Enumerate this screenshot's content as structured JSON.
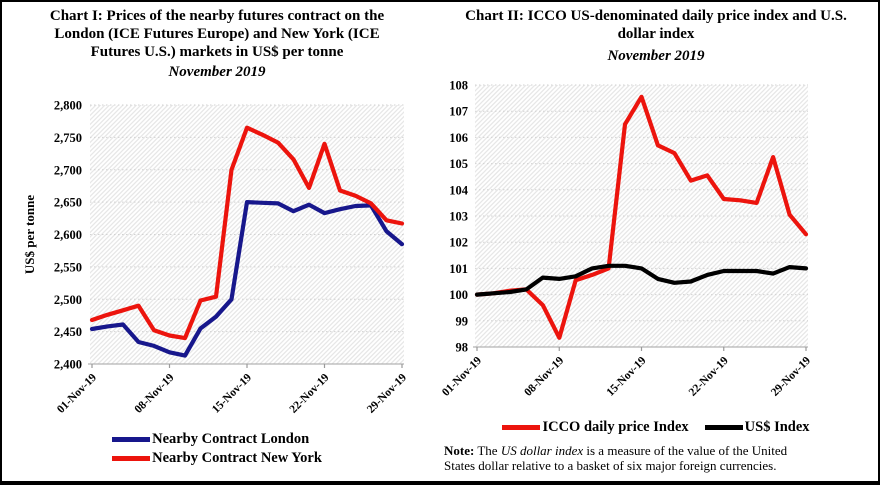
{
  "page": {
    "background": "#ffffff",
    "border_color": "#000000"
  },
  "chart_data": [
    {
      "type": "line",
      "title": "Chart I: Prices of the nearby futures contract on the London (ICE Futures Europe) and New York (ICE Futures U.S.) markets in US$ per tonne",
      "title_lines": [
        "Chart I: Prices of the nearby futures contract on the",
        "London (ICE Futures Europe) and New York (ICE",
        "Futures U.S.) markets in US$ per tonne"
      ],
      "subtitle": "November 2019",
      "ylabel": "US$ per tonne",
      "xlabel": "",
      "ylim": [
        2400,
        2800
      ],
      "ytick_step": 50,
      "ytick_labels": [
        "2,800",
        "2,750",
        "2,700",
        "2,650",
        "2,600",
        "2,550",
        "2,500",
        "2,450",
        "2,400"
      ],
      "x": [
        "01-Nov-19",
        "04-Nov-19",
        "05-Nov-19",
        "06-Nov-19",
        "07-Nov-19",
        "08-Nov-19",
        "11-Nov-19",
        "12-Nov-19",
        "13-Nov-19",
        "14-Nov-19",
        "15-Nov-19",
        "18-Nov-19",
        "19-Nov-19",
        "20-Nov-19",
        "21-Nov-19",
        "22-Nov-19",
        "25-Nov-19",
        "26-Nov-19",
        "27-Nov-19",
        "28-Nov-19",
        "29-Nov-19"
      ],
      "xtick_labels": [
        "01-Nov-19",
        "08-Nov-19",
        "15-Nov-19",
        "22-Nov-19",
        "29-Nov-19"
      ],
      "xtick_indices": [
        0,
        5,
        10,
        15,
        20
      ],
      "grid": true,
      "legend_position": "bottom",
      "series": [
        {
          "name": "Nearby Contract London",
          "color": "#17178C",
          "values": [
            2454,
            2458,
            2461,
            2434,
            2428,
            2418,
            2413,
            2455,
            2473,
            2500,
            2650,
            2649,
            2648,
            2636,
            2646,
            2633,
            2639,
            2644,
            2645,
            2605,
            2585
          ]
        },
        {
          "name": "Nearby Contract New York",
          "color": "#EC140D",
          "values": [
            2468,
            2476,
            2483,
            2490,
            2452,
            2444,
            2440,
            2498,
            2504,
            2700,
            2765,
            2754,
            2742,
            2716,
            2672,
            2740,
            2668,
            2660,
            2648,
            2622,
            2617
          ]
        }
      ]
    },
    {
      "type": "line",
      "title": "Chart II: ICCO US-denominated daily price index and U.S. dollar index",
      "title_lines": [
        "Chart II: ICCO US-denominated daily price index and U.S.",
        "dollar index"
      ],
      "subtitle": "November 2019",
      "ylabel": "",
      "xlabel": "",
      "ylim": [
        98,
        108
      ],
      "ytick_step": 1,
      "ytick_labels": [
        "108",
        "107",
        "106",
        "105",
        "104",
        "103",
        "102",
        "101",
        "100",
        "99",
        "98"
      ],
      "x": [
        "01-Nov-19",
        "04-Nov-19",
        "05-Nov-19",
        "06-Nov-19",
        "07-Nov-19",
        "08-Nov-19",
        "11-Nov-19",
        "12-Nov-19",
        "13-Nov-19",
        "14-Nov-19",
        "15-Nov-19",
        "18-Nov-19",
        "19-Nov-19",
        "20-Nov-19",
        "21-Nov-19",
        "22-Nov-19",
        "25-Nov-19",
        "26-Nov-19",
        "27-Nov-19",
        "28-Nov-19",
        "29-Nov-19"
      ],
      "xtick_labels": [
        "01-Nov-19",
        "08-Nov-19",
        "15-Nov-19",
        "22-Nov-19",
        "29-Nov-19"
      ],
      "xtick_indices": [
        0,
        5,
        10,
        15,
        20
      ],
      "grid": true,
      "legend_position": "bottom",
      "series": [
        {
          "name": "ICCO daily price Index",
          "color": "#EC140D",
          "values": [
            100.0,
            100.05,
            100.15,
            100.2,
            99.6,
            98.35,
            100.55,
            100.75,
            101.0,
            106.5,
            107.55,
            105.7,
            105.4,
            104.35,
            104.55,
            103.65,
            103.6,
            103.5,
            105.25,
            103.05,
            102.3
          ]
        },
        {
          "name": "US$ Index",
          "color": "#000000",
          "values": [
            100.0,
            100.05,
            100.1,
            100.2,
            100.65,
            100.6,
            100.7,
            101.0,
            101.1,
            101.1,
            101.0,
            100.6,
            100.45,
            100.5,
            100.75,
            100.9,
            100.9,
            100.9,
            100.8,
            101.05,
            101.0
          ]
        }
      ],
      "note": {
        "prefix": "Note:",
        "line1_regular": " The ",
        "line1_italic": "US dollar index",
        "line1_rest": " is a measure of the value of the United",
        "line2": "States dollar relative to a basket of six major foreign currencies."
      }
    }
  ]
}
